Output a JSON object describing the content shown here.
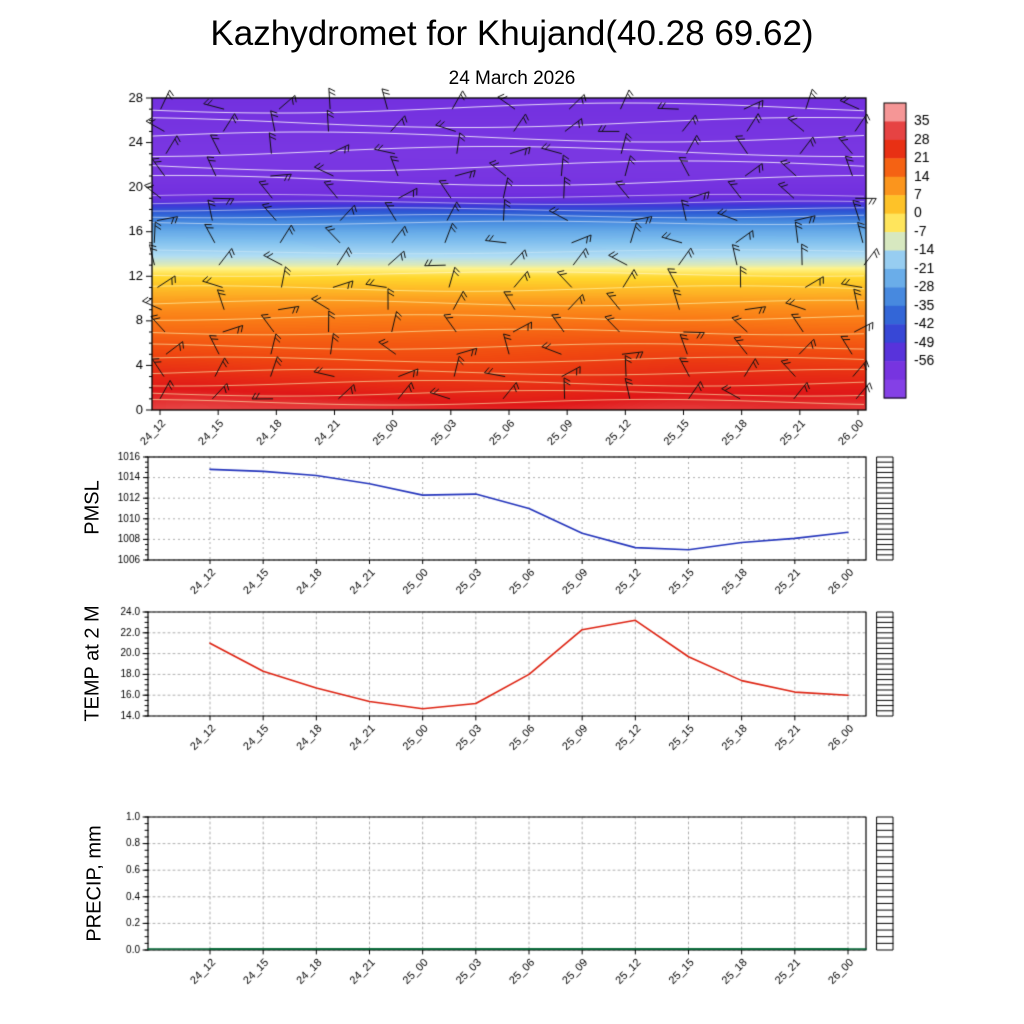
{
  "page": {
    "title": "Kazhydromet for Khujand(40.28 69.62)",
    "subtitle": "24 March 2026"
  },
  "time_labels": [
    "24_12",
    "24_15",
    "24_18",
    "24_21",
    "25_00",
    "25_03",
    "25_06",
    "25_09",
    "25_12",
    "25_15",
    "25_18",
    "25_21",
    "26_00"
  ],
  "colorbar": {
    "labels": [
      "35",
      "28",
      "21",
      "14",
      "7",
      "0",
      "-7",
      "-14",
      "-21",
      "-28",
      "-35",
      "-42",
      "-49",
      "-56"
    ],
    "scale_stops": [
      {
        "t": 38,
        "c": "#f59696"
      },
      {
        "t": 35,
        "c": "#ec6e6e"
      },
      {
        "t": 28,
        "c": "#e01818"
      },
      {
        "t": 21,
        "c": "#f04810"
      },
      {
        "t": 14,
        "c": "#fa7c16"
      },
      {
        "t": 7,
        "c": "#fdae24"
      },
      {
        "t": 0,
        "c": "#ffd62c"
      },
      {
        "t": -7,
        "c": "#fff48c"
      },
      {
        "t": -14,
        "c": "#b0ddf4"
      },
      {
        "t": -21,
        "c": "#7ebeee"
      },
      {
        "t": -28,
        "c": "#569ce4"
      },
      {
        "t": -35,
        "c": "#3876da"
      },
      {
        "t": -42,
        "c": "#2e56d4"
      },
      {
        "t": -49,
        "c": "#4038d8"
      },
      {
        "t": -56,
        "c": "#702ede"
      },
      {
        "t": -66,
        "c": "#8440e6"
      }
    ]
  },
  "chart_data": [
    {
      "type": "heatmap",
      "name": "temperature-height cross-section with wind barbs",
      "x": [
        "24_12",
        "24_15",
        "24_18",
        "24_21",
        "25_00",
        "25_03",
        "25_06",
        "25_09",
        "25_12",
        "25_15",
        "25_18",
        "25_21",
        "26_00"
      ],
      "ylim": [
        0,
        28
      ],
      "ytick_labels": [
        "0",
        "4",
        "8",
        "12",
        "16",
        "20",
        "24",
        "28"
      ],
      "levels_c": [
        35,
        28,
        21,
        14,
        7,
        0,
        -7,
        -14,
        -21,
        -28,
        -35,
        -42,
        -49,
        -56
      ],
      "profile_heights": [
        0,
        2,
        4,
        6,
        8,
        9,
        10,
        11,
        12,
        12.7,
        13,
        14,
        15,
        16,
        17,
        18,
        18.7,
        19.5,
        21,
        23,
        25,
        28
      ],
      "profile_temps_c": [
        30,
        26,
        22.5,
        19,
        14.5,
        12,
        8.5,
        4,
        -1,
        -7,
        -10,
        -15,
        -20,
        -25,
        -32,
        -44,
        -53,
        -57,
        -60,
        -61,
        -59.5,
        -57.5
      ],
      "wind_barbs": true,
      "contour_lines": true,
      "legend_position": "right-colorbar",
      "grid": false
    },
    {
      "type": "line",
      "name": "PMSL",
      "categories": [
        "24_12",
        "24_15",
        "24_18",
        "24_21",
        "25_00",
        "25_03",
        "25_06",
        "25_09",
        "25_12",
        "25_15",
        "25_18",
        "25_21",
        "26_00"
      ],
      "values": [
        1014.8,
        1014.6,
        1014.2,
        1013.4,
        1012.3,
        1012.4,
        1011.0,
        1008.6,
        1007.2,
        1007.0,
        1007.7,
        1008.1,
        1008.7
      ],
      "ylim": [
        1006,
        1016
      ],
      "yticks": [
        1006,
        1008,
        1010,
        1012,
        1014,
        1016
      ],
      "ytick_labels": [
        "1006",
        "1008",
        "1010",
        "1012",
        "1014",
        "1016"
      ],
      "line_color": "#2233bb",
      "grid": "dashed"
    },
    {
      "type": "line",
      "name": "TEMP at 2 M",
      "categories": [
        "24_12",
        "24_15",
        "24_18",
        "24_21",
        "25_00",
        "25_03",
        "25_06",
        "25_09",
        "25_12",
        "25_15",
        "25_18",
        "25_21",
        "26_00"
      ],
      "values": [
        21.0,
        18.3,
        16.7,
        15.4,
        14.7,
        15.2,
        18.0,
        22.3,
        23.2,
        19.7,
        17.4,
        16.3,
        16.0
      ],
      "ylim": [
        14,
        24
      ],
      "yticks": [
        14,
        16,
        18,
        20,
        22,
        24
      ],
      "ytick_labels": [
        "14.0",
        "16.0",
        "18.0",
        "20.0",
        "22.0",
        "24.0"
      ],
      "line_color": "#dd2211",
      "grid": "dashed"
    },
    {
      "type": "line",
      "name": "PRECIP, mm",
      "categories": [
        "24_12",
        "24_15",
        "24_18",
        "24_21",
        "25_00",
        "25_03",
        "25_06",
        "25_09",
        "25_12",
        "25_15",
        "25_18",
        "25_21",
        "26_00"
      ],
      "values": [
        0,
        0,
        0,
        0,
        0,
        0,
        0,
        0,
        0,
        0,
        0,
        0,
        0
      ],
      "ylim": [
        0,
        1
      ],
      "yticks": [
        0,
        0.2,
        0.4,
        0.6,
        0.8,
        1
      ],
      "ytick_labels": [
        "0.0",
        "0.2",
        "0.4",
        "0.6",
        "0.8",
        "1.0"
      ],
      "line_color": "#006633",
      "grid": "dashed"
    }
  ]
}
